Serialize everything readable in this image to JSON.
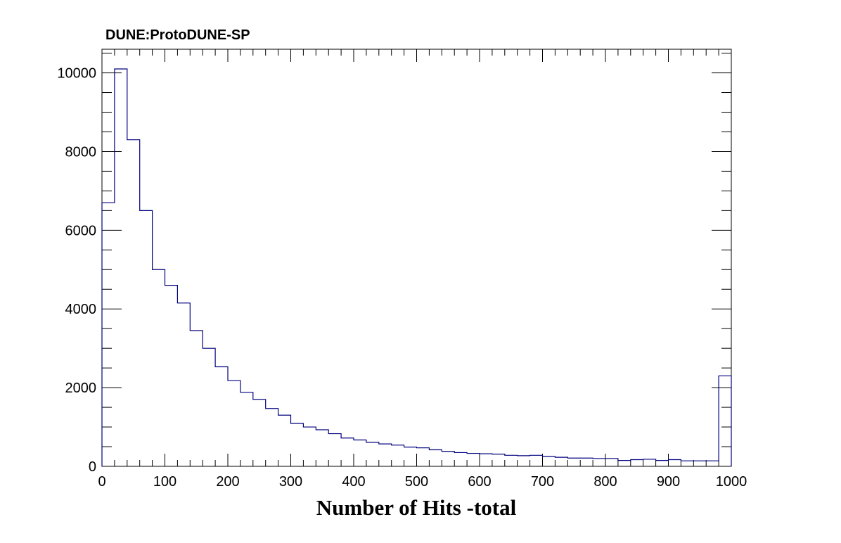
{
  "chart_data": {
    "type": "bar",
    "title": "DUNE:ProtoDUNE-SP",
    "xlabel": "Number of Hits -total",
    "ylabel": "",
    "xlim": [
      0,
      1000
    ],
    "ylim": [
      0,
      10600
    ],
    "bin_width": 20,
    "x_ticks": [
      0,
      100,
      200,
      300,
      400,
      500,
      600,
      700,
      800,
      900,
      1000
    ],
    "y_ticks": [
      0,
      2000,
      4000,
      6000,
      8000,
      10000
    ],
    "grid": false,
    "legend": "none",
    "series": [
      {
        "values": [
          6700,
          10100,
          8300,
          6500,
          5000,
          4600,
          4150,
          3450,
          3000,
          2530,
          2180,
          1880,
          1700,
          1470,
          1300,
          1090,
          1000,
          930,
          830,
          720,
          670,
          610,
          570,
          540,
          490,
          470,
          420,
          380,
          350,
          330,
          320,
          310,
          280,
          270,
          280,
          250,
          230,
          210,
          210,
          200,
          200,
          150,
          170,
          180,
          150,
          170,
          140,
          140,
          140,
          2300
        ],
        "color": "#00007f"
      }
    ]
  }
}
